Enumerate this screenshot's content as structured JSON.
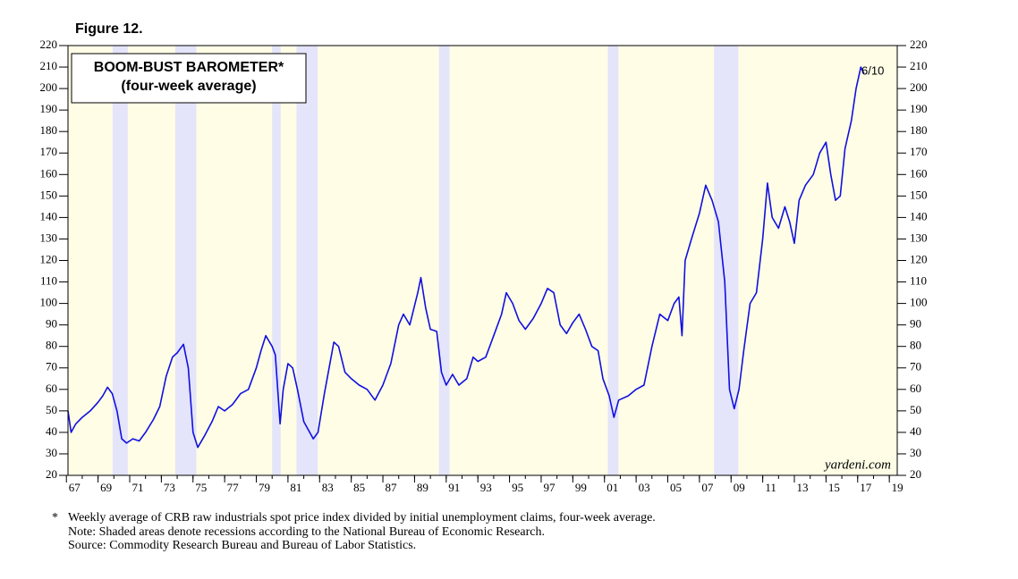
{
  "figure": "Figure 12.",
  "chart_data": {
    "type": "line",
    "title": "BOOM-BUST BAROMETER*",
    "subtitle": "(four-week average)",
    "annotation": "6/10",
    "source_mark": "yardeni.com",
    "color": "#1010e0",
    "recession_color": "#e4e4fa",
    "background": "#fffde6",
    "recessions": [
      [
        1969.92,
        1970.88
      ],
      [
        1973.88,
        1975.21
      ],
      [
        1980.0,
        1980.54
      ],
      [
        1981.54,
        1982.88
      ],
      [
        1990.54,
        1991.21
      ],
      [
        2001.21,
        2001.88
      ],
      [
        2007.92,
        2009.46
      ]
    ],
    "xlim": [
      1967.1,
      2019.5
    ],
    "xticks": [
      {
        "value": 1967,
        "label": "67"
      },
      {
        "value": 1969,
        "label": "69"
      },
      {
        "value": 1971,
        "label": "71"
      },
      {
        "value": 1973,
        "label": "73"
      },
      {
        "value": 1975,
        "label": "75"
      },
      {
        "value": 1977,
        "label": "77"
      },
      {
        "value": 1979,
        "label": "79"
      },
      {
        "value": 1981,
        "label": "81"
      },
      {
        "value": 1983,
        "label": "83"
      },
      {
        "value": 1985,
        "label": "85"
      },
      {
        "value": 1987,
        "label": "87"
      },
      {
        "value": 1989,
        "label": "89"
      },
      {
        "value": 1991,
        "label": "91"
      },
      {
        "value": 1993,
        "label": "93"
      },
      {
        "value": 1995,
        "label": "95"
      },
      {
        "value": 1997,
        "label": "97"
      },
      {
        "value": 1999,
        "label": "99"
      },
      {
        "value": 2001,
        "label": "01"
      },
      {
        "value": 2003,
        "label": "03"
      },
      {
        "value": 2005,
        "label": "05"
      },
      {
        "value": 2007,
        "label": "07"
      },
      {
        "value": 2009,
        "label": "09"
      },
      {
        "value": 2011,
        "label": "11"
      },
      {
        "value": 2013,
        "label": "13"
      },
      {
        "value": 2015,
        "label": "15"
      },
      {
        "value": 2017,
        "label": "17"
      },
      {
        "value": 2019,
        "label": "19"
      }
    ],
    "ylim": [
      20,
      220
    ],
    "yticks": [
      20,
      30,
      40,
      50,
      60,
      70,
      80,
      90,
      100,
      110,
      120,
      130,
      140,
      150,
      160,
      170,
      180,
      190,
      200,
      210,
      220
    ],
    "x": [
      1967.1,
      1967.3,
      1967.6,
      1968.0,
      1968.5,
      1969.0,
      1969.3,
      1969.6,
      1969.9,
      1970.2,
      1970.5,
      1970.8,
      1971.2,
      1971.6,
      1972.0,
      1972.5,
      1972.9,
      1973.3,
      1973.7,
      1974.0,
      1974.4,
      1974.7,
      1975.0,
      1975.3,
      1975.7,
      1976.2,
      1976.6,
      1977.0,
      1977.5,
      1978.0,
      1978.5,
      1979.0,
      1979.3,
      1979.6,
      1980.0,
      1980.2,
      1980.5,
      1980.7,
      1981.0,
      1981.3,
      1981.6,
      1982.0,
      1982.6,
      1982.9,
      1983.3,
      1983.6,
      1983.9,
      1984.2,
      1984.6,
      1985.0,
      1985.5,
      1986.0,
      1986.5,
      1987.0,
      1987.5,
      1988.0,
      1988.3,
      1988.7,
      1989.2,
      1989.4,
      1989.7,
      1990.0,
      1990.4,
      1990.7,
      1991.0,
      1991.4,
      1991.8,
      1992.3,
      1992.7,
      1993.0,
      1993.5,
      1994.0,
      1994.5,
      1994.8,
      1995.2,
      1995.6,
      1996.0,
      1996.5,
      1997.0,
      1997.4,
      1997.8,
      1998.2,
      1998.6,
      1999.0,
      1999.4,
      1999.8,
      2000.2,
      2000.6,
      2000.9,
      2001.3,
      2001.6,
      2001.9,
      2002.5,
      2003.0,
      2003.5,
      2004.0,
      2004.5,
      2005.0,
      2005.4,
      2005.7,
      2005.9,
      2006.1,
      2006.5,
      2007.0,
      2007.4,
      2007.8,
      2008.2,
      2008.6,
      2008.9,
      2009.2,
      2009.5,
      2009.8,
      2010.2,
      2010.6,
      2011.0,
      2011.3,
      2011.6,
      2012.0,
      2012.4,
      2012.7,
      2013.0,
      2013.3,
      2013.7,
      2014.2,
      2014.6,
      2015.0,
      2015.3,
      2015.6,
      2015.9,
      2016.2,
      2016.6,
      2016.9,
      2017.2,
      2017.4
    ],
    "values": [
      50,
      40,
      44,
      47,
      50,
      54,
      57,
      61,
      58,
      50,
      37,
      35,
      37,
      36,
      40,
      46,
      52,
      66,
      75,
      77,
      81,
      70,
      40,
      33,
      38,
      45,
      52,
      50,
      53,
      58,
      60,
      70,
      78,
      85,
      80,
      76,
      44,
      60,
      72,
      70,
      60,
      45,
      37,
      40,
      58,
      70,
      82,
      80,
      68,
      65,
      62,
      60,
      55,
      62,
      72,
      90,
      95,
      90,
      105,
      112,
      98,
      88,
      87,
      68,
      62,
      67,
      62,
      65,
      75,
      73,
      75,
      85,
      95,
      105,
      100,
      92,
      88,
      93,
      100,
      107,
      105,
      90,
      86,
      91,
      95,
      88,
      80,
      78,
      65,
      57,
      47,
      55,
      57,
      60,
      62,
      80,
      95,
      92,
      100,
      103,
      85,
      120,
      130,
      142,
      155,
      148,
      138,
      110,
      60,
      51,
      60,
      78,
      100,
      105,
      130,
      156,
      140,
      135,
      145,
      138,
      128,
      148,
      155,
      160,
      170,
      175,
      160,
      148,
      150,
      172,
      185,
      200,
      210,
      207
    ]
  },
  "footnotes": [
    "Weekly average of CRB raw industrials spot price index divided by initial unemployment claims, four-week average.",
    "Note: Shaded areas denote recessions according to the National Bureau of Economic Research.",
    "Source: Commodity Research Bureau and Bureau of Labor Statistics."
  ],
  "footnote_marker": "*"
}
